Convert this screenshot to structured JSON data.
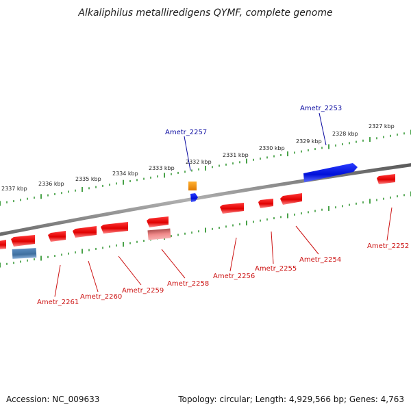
{
  "title": "Alkaliphilus metalliredigens QYMF, complete genome",
  "footer": {
    "accession": "Accession: NC_009633",
    "topology": "Topology: circular; Length: 4,929,566 bp; Genes: 4,763"
  },
  "colors": {
    "forward_gene": "#0a14e6",
    "reverse_gene": "#ee1111",
    "rrna_gene": "#e07070",
    "trna_gene": "#ff9a00",
    "misc_gene": "#4a7fb5",
    "backbone": "#8a8a8a",
    "ruler_ticks": "#1a8a1a",
    "forward_label": "#0a0aa0",
    "reverse_label": "#cc1111"
  },
  "kbp_labels": [
    "2327 kbp",
    "2328 kbp",
    "2329 kbp",
    "2330 kbp",
    "2331 kbp",
    "2332 kbp",
    "2333 kbp",
    "2334 kbp",
    "2335 kbp",
    "2336 kbp",
    "2337 kbp"
  ],
  "forward_labels": [
    "Ametr_2253",
    "Ametr_2257"
  ],
  "reverse_labels": [
    "Ametr_2252",
    "Ametr_2254",
    "Ametr_2255",
    "Ametr_2256",
    "Ametr_2258",
    "Ametr_2259",
    "Ametr_2260",
    "Ametr_2261"
  ]
}
